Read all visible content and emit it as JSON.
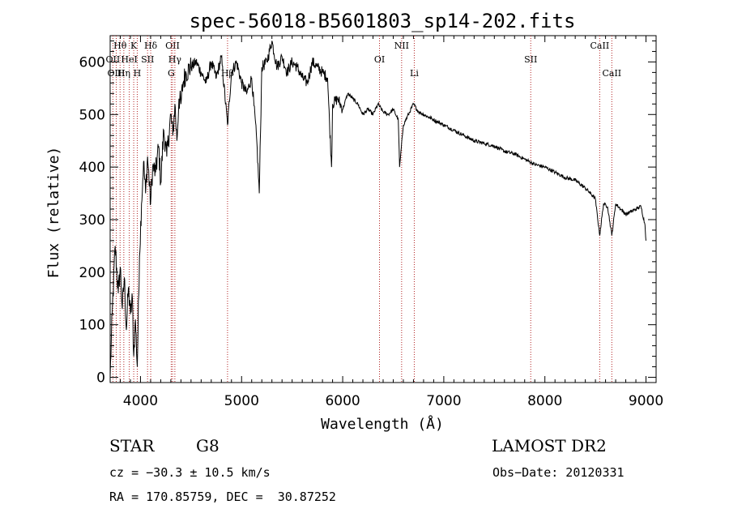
{
  "chart_data": {
    "type": "line",
    "title": "spec-56018-B5601803_sp14-202.fits",
    "xlabel": "Wavelength (Å)",
    "ylabel": "Flux (relative)",
    "xlim": [
      3700,
      9100
    ],
    "ylim": [
      -10,
      650
    ],
    "x_ticks": [
      4000,
      5000,
      6000,
      7000,
      8000,
      9000
    ],
    "y_ticks": [
      0,
      100,
      200,
      300,
      400,
      500,
      600
    ],
    "grid": false,
    "line_color": "#000000",
    "marker_color": "#b22222",
    "series": [
      {
        "x": [
          3700,
          3720,
          3750,
          3780,
          3800,
          3820,
          3840,
          3860,
          3880,
          3900,
          3920,
          3933,
          3950,
          3968,
          3990,
          4010,
          4030,
          4050,
          4070,
          4100,
          4120,
          4150,
          4180,
          4200,
          4230,
          4260,
          4300,
          4320,
          4340,
          4360,
          4380,
          4400,
          4420,
          4450,
          4500,
          4550,
          4600,
          4650,
          4700,
          4750,
          4800,
          4861,
          4900,
          4950,
          5000,
          5050,
          5100,
          5150,
          5175,
          5200,
          5250,
          5300,
          5350,
          5400,
          5450,
          5500,
          5550,
          5600,
          5650,
          5700,
          5750,
          5800,
          5850,
          5890,
          5900,
          5950,
          6000,
          6050,
          6100,
          6150,
          6200,
          6250,
          6300,
          6350,
          6400,
          6450,
          6500,
          6550,
          6563,
          6600,
          6650,
          6700,
          6750,
          6800,
          6850,
          6900,
          7000,
          7100,
          7200,
          7300,
          7400,
          7500,
          7600,
          7700,
          7800,
          7850,
          7900,
          8000,
          8100,
          8200,
          8300,
          8400,
          8450,
          8498,
          8542,
          8580,
          8620,
          8662,
          8700,
          8750,
          8800,
          8850,
          8900,
          8950,
          8990,
          9000
        ],
        "y": [
          0,
          120,
          250,
          160,
          210,
          130,
          190,
          90,
          170,
          120,
          150,
          40,
          110,
          20,
          230,
          330,
          410,
          350,
          420,
          330,
          400,
          390,
          440,
          370,
          470,
          420,
          500,
          460,
          520,
          450,
          530,
          520,
          560,
          580,
          590,
          600,
          580,
          560,
          600,
          570,
          610,
          480,
          580,
          600,
          560,
          540,
          570,
          450,
          350,
          590,
          600,
          640,
          590,
          610,
          580,
          600,
          590,
          570,
          560,
          600,
          590,
          580,
          570,
          400,
          520,
          530,
          510,
          540,
          530,
          520,
          500,
          510,
          500,
          520,
          505,
          500,
          510,
          490,
          400,
          480,
          500,
          520,
          505,
          500,
          495,
          490,
          480,
          470,
          460,
          450,
          445,
          440,
          430,
          425,
          415,
          410,
          405,
          400,
          390,
          380,
          375,
          360,
          350,
          340,
          270,
          330,
          325,
          270,
          330,
          320,
          310,
          315,
          320,
          325,
          290,
          260
        ]
      }
    ],
    "line_markers": [
      {
        "label": "Hθ",
        "x": 3798,
        "row": 0
      },
      {
        "label": "K",
        "x": 3933,
        "row": 0
      },
      {
        "label": "Hδ",
        "x": 4101,
        "row": 0
      },
      {
        "label": "OII",
        "x": 4317,
        "row": 0
      },
      {
        "label": "NII",
        "x": 6583,
        "row": 0
      },
      {
        "label": "CaII",
        "x": 8542,
        "row": 0
      },
      {
        "label": "OII",
        "x": 3727,
        "row": 1
      },
      {
        "label": "HeI",
        "x": 3889,
        "row": 1
      },
      {
        "label": "SII",
        "x": 4070,
        "row": 1
      },
      {
        "label": "Hγ",
        "x": 4340,
        "row": 1
      },
      {
        "label": "OI",
        "x": 6364,
        "row": 1
      },
      {
        "label": "SII",
        "x": 7860,
        "row": 1
      },
      {
        "label": "OIII",
        "x": 3760,
        "row": 2
      },
      {
        "label": "Hη",
        "x": 3835,
        "row": 2
      },
      {
        "label": "H",
        "x": 3968,
        "row": 2
      },
      {
        "label": "G",
        "x": 4304,
        "row": 2
      },
      {
        "label": "Li",
        "x": 6708,
        "row": 2
      },
      {
        "label": "CaII",
        "x": 8662,
        "row": 2
      },
      {
        "label": "Hβ",
        "x": 4861,
        "row": 3
      }
    ]
  },
  "info": {
    "object_class": "STAR",
    "subclass": "G8",
    "survey": "LAMOST DR2",
    "redshift": "cz = −30.3 ± 10.5 km/s",
    "obs_date": "Obs−Date: 20120331",
    "coords": "RA = 170.85759, DEC =  30.87252"
  }
}
